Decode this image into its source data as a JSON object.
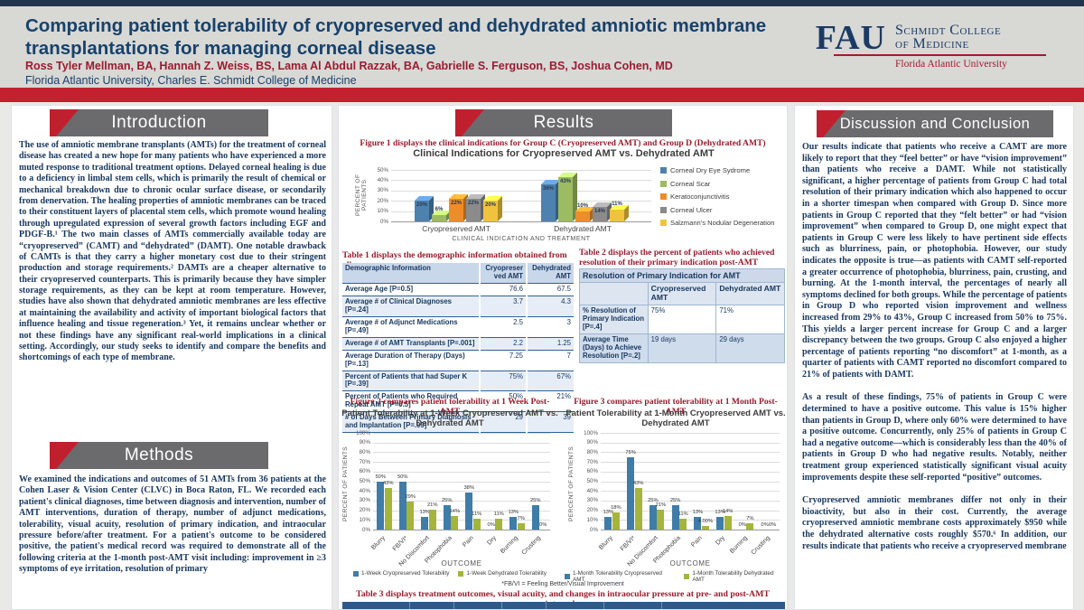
{
  "header": {
    "title": "Comparing patient tolerability of cryopreserved and dehydrated amniotic membrane transplantations for managing corneal disease",
    "authors": "Ross Tyler Mellman, BA, Hannah Z. Weiss, BS, Lama Al Abdul Razzak, BA, Gabrielle S. Ferguson, BS, Joshua Cohen, MD",
    "affiliation": "Florida Atlantic University, Charles E. Schmidt College of Medicine",
    "logo": {
      "acronym": "FAU",
      "college_line1": "Schmidt College",
      "college_line2": "of Medicine",
      "university": "Florida Atlantic University"
    }
  },
  "sections": {
    "introduction": {
      "title": "Introduction",
      "body": "The use of amniotic membrane transplants (AMTs) for the treatment of corneal disease has created a new hope for many patients who have experienced a more muted response to traditional treatment options. Delayed corneal healing is due to a deficiency in limbal stem cells, which is primarily the result of chemical or mechanical breakdown due to chronic ocular surface disease, or secondarily from denervation. The healing properties of amniotic membranes can be traced to their constituent layers of placental stem cells, which promote wound healing through upregulated expression of several growth factors including EGF and PDGF-B.¹  The two main classes of AMTs commercially available today are “cryopreserved” (CAMT) and “dehydrated” (DAMT). One notable drawback of CAMTs is that they carry a higher monetary cost due to their stringent production and storage requirements.²  DAMTs are a cheaper alternative to their cryopreserved counterparts. This is primarily because they have simpler storage requirements, as they can be kept at room temperature. However, studies have also shown that dehydrated amniotic membranes are less effective at maintaining the availability and activity of important biological factors that influence healing and tissue regeneration.³ Yet, it remains unclear whether or not these findings have any significant real-world implications in a clinical setting. Accordingly, our study seeks to identify and compare the benefits and shortcomings of each type of membrane."
    },
    "methods": {
      "title": "Methods",
      "body": "We examined the indications and outcomes of 51 AMTs from 36 patients at the Cohen Laser & Vision Center (CLVC) in Boca Raton, FL.  We recorded each patient's clinical diagnoses, time between diagnosis and intervention, number of AMT interventions, duration of therapy, number of adjunct medications, tolerability, visual acuity, resolution of primary indication, and intraocular pressure before/after treatment. For a patient's outcome to be considered positive, the patient's medical record was required to demonstrate all of the following criteria at the 1-month post-AMT visit including: improvement in ≥3 symptoms of eye irritation, resolution of primary"
    },
    "results": {
      "title": "Results"
    },
    "discussion": {
      "title": "Discussion and Conclusion",
      "paragraphs": [
        "Our results indicate that patients who receive a CAMT are more likely to report that they “feel better” or have “vision improvement” than patients who receive a DAMT. While not statistically significant, a higher percentage of patients from Group C had total resolution of their primary indication which also happened to occur in a shorter timespan when compared with Group D. Since more patients in Group C reported that they “felt better” or had “vision improvement” when compared to Group D, one might expect that patients in Group C were less likely to have pertinent side effects such as blurriness, pain, or photophobia. However, our study indicates the opposite is true—as patients with CAMT self-reported a greater occurrence of photophobia, blurriness, pain, crusting, and burning.  At the 1-month interval, the percentages of nearly all symptoms declined for both groups. While the percentage of patients in Group D who reported vision improvement and wellness increased from 29% to 43%, Group C increased from 50% to 75%. This yields a larger percent increase for Group C and a larger discrepancy between the two groups. Group C also enjoyed a higher percentage of patients reporting “no discomfort” at 1-month, as a quarter of patients with CAMT reported no discomfort compared to 21% of patients with DAMT.",
        "As a result of these findings, 75% of patients in Group C were determined to have a positive outcome. This value is 15% higher than patients in Group D, where only 60% were determined to have a positive outcome. Concurrently, only 25% of patients in Group C had a negative outcome—which is considerably less than the 40% of patients in Group D who had negative results. Notably, neither treatment group experienced statistically significant visual acuity improvements despite these self-reported “positive” outcomes.",
        "Cryopreserved amniotic membranes differ not only in their bioactivity, but also in their cost. Currently, the average cryopreserved amniotic membrane costs approximately $950 while the dehydrated alternative costs roughly $570.⁶ In addition, our results indicate that patients who receive a cryopreserved membrane"
      ]
    }
  },
  "captions": {
    "fig1": "Figure 1 displays the clinical indications for Group C (Cryopreserved AMT) and Group D (Dehydrated AMT)",
    "table1": "Table 1 displays the demographic information obtained from all cases",
    "table2": "Table 2 displays the percent of patients who achieved resolution of their primary indication post-AMT",
    "fig2": "Figure 2 compares patient tolerability at 1 Week Post-AMT",
    "fig3": "Figure 3 compares patient tolerability at 1 Month Post-AMT",
    "table3": "Table 3 displays treatment outcomes, visual acuity, and changes in intraocular pressure at pre- and post-AMT intervals."
  },
  "footnote": "*FB/VI = Feeling Better/Visual Improvement",
  "tables": {
    "table1": {
      "headers": [
        "Demographic Information",
        "Cryopreserved AMT",
        "Dehydrated AMT"
      ],
      "rows": [
        [
          "Average Age [P=0.5]",
          "76.6",
          "67.5"
        ],
        [
          "Average # of Clinical Diagnoses [P=.24]",
          "3.7",
          "4.3"
        ],
        [
          "Average # of Adjunct Medications [P=.49]",
          "2.5",
          "3"
        ],
        [
          "Average # of AMT Transplants [P=.001]",
          "2.2",
          "1.25"
        ],
        [
          "Average Duration of Therapy (Days) [P=.13]",
          "7.25",
          "7"
        ],
        [
          "Percent of Patients that had Super K [P=.39]",
          "75%",
          "67%"
        ],
        [
          "Percent of Patients who Required Repeat AMT [P=0.5]",
          "50%",
          "21%"
        ],
        [
          "# of Days Between Primary Diagnosis and Implantation [P=.09]",
          "29",
          "39"
        ]
      ]
    },
    "table2": {
      "title": "Resolution of Primary Indication for AMT",
      "headers": [
        "",
        "Cryopreserved AMT",
        "Dehydrated AMT"
      ],
      "rows": [
        [
          "% Resolution of Primary Indication [P=.4]",
          "75%",
          "71%"
        ],
        [
          "Average Time (Days) to Achieve Resolution [P=.2]",
          "19 days",
          "29 days"
        ]
      ]
    }
  },
  "chart_data": [
    {
      "id": "fig1",
      "type": "bar",
      "title": "Clinical Indications for Cryopreserved AMT vs. Dehydrated AMT",
      "xlabel": "CLINICAL INDICATION AND TREATMENT",
      "ylabel": "PERCENT OF PATIENTS",
      "ylim": [
        0,
        50
      ],
      "ytick_step": 10,
      "grid": true,
      "legend_position": "right",
      "categories": [
        "Cryopreserved AMT",
        "Dehydrated AMT"
      ],
      "series": [
        {
          "name": "Corneal Dry Eye Sydrome",
          "color": "#4e81ae",
          "values": [
            20,
            36
          ],
          "labels": [
            "20%",
            "36%"
          ]
        },
        {
          "name": "Corneal Scar",
          "color": "#9dbb61",
          "values": [
            6,
            43
          ],
          "labels": [
            "6%",
            "43%"
          ]
        },
        {
          "name": "Keratoconjunctivitis",
          "color": "#ed8d29",
          "values": [
            22,
            10
          ],
          "labels": [
            "22%",
            "10%"
          ]
        },
        {
          "name": "Corneal Ulcer",
          "color": "#8b8b8b",
          "values": [
            22,
            14
          ],
          "labels": [
            "22%",
            "14%"
          ]
        },
        {
          "name": "Salzmann's Nodular Degeneration",
          "color": "#f0c33c",
          "values": [
            20,
            11
          ],
          "labels": [
            "20%",
            "11%"
          ]
        }
      ]
    },
    {
      "id": "fig2",
      "type": "bar",
      "title": "Patient Tolerability at 1-Week Cryopreserved AMT vs. Dehydrated AMT",
      "xlabel": "OUTCOME",
      "ylabel": "PERCENT OF PATIENTS",
      "ylim": [
        0,
        100
      ],
      "ytick_step": 10,
      "grid": true,
      "legend_position": "bottom",
      "categories": [
        "Blurry",
        "FB/VI*",
        "No Discomfort",
        "Photophobia",
        "Pain",
        "Dry",
        "Burning",
        "Crusting"
      ],
      "series": [
        {
          "name": "1-Week Cryopreserved Tolerability",
          "color": "#3f7ca8",
          "values": [
            50,
            50,
            13,
            25,
            38,
            0,
            13,
            25
          ],
          "labels": [
            "50%",
            "50%",
            "13%",
            "25%",
            "38%",
            "0%",
            "13%",
            "25%"
          ]
        },
        {
          "name": "1-Week Dehydrated Tolerability",
          "color": "#a5b43b",
          "values": [
            43,
            29,
            21,
            14,
            11,
            11,
            7,
            0
          ],
          "labels": [
            "43%",
            "29%",
            "21%",
            "14%",
            "11%",
            "11%",
            "7%",
            "0%"
          ]
        }
      ]
    },
    {
      "id": "fig3",
      "type": "bar",
      "title": "Patient Tolerability at 1-Month Cryopreserved AMT vs. Dehydrated AMT",
      "xlabel": "OUTCOME",
      "ylabel": "PERCENT OF PATIENTS",
      "ylim": [
        0,
        100
      ],
      "ytick_step": 10,
      "grid": true,
      "legend_position": "bottom",
      "categories": [
        "Blurry",
        "FB/VI*",
        "No Discomfort",
        "Photophobia",
        "Pain",
        "Dry",
        "Burning",
        "Crusting"
      ],
      "series": [
        {
          "name": "1-Month Tolerability Cryopreserved AMT",
          "color": "#3f7ca8",
          "values": [
            13,
            75,
            25,
            25,
            13,
            13,
            0,
            0
          ],
          "labels": [
            "13%",
            "75%",
            "25%",
            "25%",
            "13%",
            "13%",
            "0%",
            "0%"
          ]
        },
        {
          "name": "1-Month Tolerability Dehydrated AMT",
          "color": "#a5b43b",
          "values": [
            18,
            43,
            21,
            11,
            4,
            14,
            7,
            0
          ],
          "labels": [
            "18%",
            "43%",
            "21%",
            "11%",
            "4.00%",
            "14%",
            "7%",
            "0%"
          ]
        }
      ]
    }
  ]
}
